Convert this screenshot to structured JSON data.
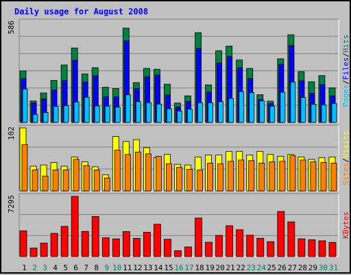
{
  "chart_data": {
    "type": "bar",
    "title": "Daily usage for August 2008",
    "categories": [
      "1",
      "2",
      "3",
      "4",
      "5",
      "6",
      "7",
      "8",
      "9",
      "10",
      "11",
      "12",
      "13",
      "14",
      "15",
      "16",
      "17",
      "18",
      "19",
      "20",
      "21",
      "22",
      "23",
      "24",
      "25",
      "26",
      "27",
      "28",
      "29",
      "30",
      "31"
    ],
    "weekend_days": [
      "2",
      "3",
      "9",
      "10",
      "16",
      "17",
      "23",
      "24",
      "30",
      "31"
    ],
    "panels": [
      {
        "id": "hits-files-pages",
        "ymax_label": "586",
        "ymax": 586,
        "series": [
          {
            "name": "Hits",
            "color": "#008040",
            "values": [
              300,
              125,
              172,
              245,
              335,
              434,
              283,
              319,
              205,
              197,
              550,
              232,
              315,
              310,
              223,
              113,
              155,
              523,
              219,
              418,
              445,
              364,
              315,
              162,
              124,
              371,
              511,
              296,
              237,
              273,
              202
            ]
          },
          {
            "name": "Files",
            "color": "#0000ff",
            "values": [
              255,
              114,
              137,
              190,
              245,
              363,
              236,
              272,
              150,
              150,
              475,
              197,
              266,
              276,
              160,
              90,
              122,
              430,
              176,
              346,
              384,
              319,
              256,
              135,
              110,
              339,
              449,
              243,
              170,
              221,
              155
            ]
          },
          {
            "name": "Pages",
            "color": "#00c0ff",
            "values": [
              195,
              47,
              58,
              94,
              98,
              119,
              147,
              96,
              95,
              89,
              161,
              121,
              115,
              107,
              80,
              67,
              78,
              115,
              115,
              121,
              140,
              180,
              173,
              125,
              95,
              176,
              235,
              145,
              106,
              102,
              111
            ]
          }
        ],
        "legend_labels": [
          "Pages",
          "/",
          "Files",
          "/",
          "Hits"
        ]
      },
      {
        "id": "visits-sites",
        "ymax_label": "102",
        "ymax": 102,
        "series": [
          {
            "name": "Visits",
            "color": "#ffff00",
            "values": [
              102,
              40,
              42,
              46,
              40,
              55,
              47,
              39,
              26,
              88,
              80,
              83,
              70,
              54,
              59,
              43,
              42,
              55,
              58,
              58,
              64,
              64,
              58,
              64,
              59,
              56,
              59,
              55,
              51,
              54,
              55
            ]
          },
          {
            "name": "Sites",
            "color": "#ff8000",
            "values": [
              75,
              34,
              24,
              34,
              34,
              51,
              41,
              34,
              21,
              66,
              59,
              63,
              60,
              56,
              44,
              38,
              35,
              34,
              45,
              44,
              48,
              50,
              49,
              45,
              47,
              48,
              57,
              50,
              47,
              46,
              45
            ]
          }
        ],
        "legend_labels": [
          "Sites",
          "/",
          "Visits"
        ]
      },
      {
        "id": "kbytes",
        "ymax_label": "7295",
        "ymax": 7295,
        "series": [
          {
            "name": "KBytes",
            "color": "#ff0000",
            "values": [
              3121,
              1029,
              1637,
              2810,
              3659,
              7295,
              3048,
              4855,
              2273,
              2144,
              3028,
              2209,
              2951,
              3916,
              2092,
              713,
              1165,
              4667,
              1733,
              2569,
              3734,
              3248,
              2591,
              2215,
              1806,
              5462,
              4202,
              2149,
              2034,
              1909,
              1716
            ]
          }
        ],
        "legend_labels": [
          "KBytes"
        ]
      }
    ],
    "x_label_colors": {
      "weekday": "#000000",
      "weekend": "#00805c"
    },
    "legend_colors": {
      "Hits": "#00805c",
      "Files": "#0000ff",
      "Pages": "#00c0ff",
      "Visits": "#ffff00",
      "Sites": "#ff8000",
      "KBytes": "#ff0000",
      "separator": "#000000"
    }
  }
}
